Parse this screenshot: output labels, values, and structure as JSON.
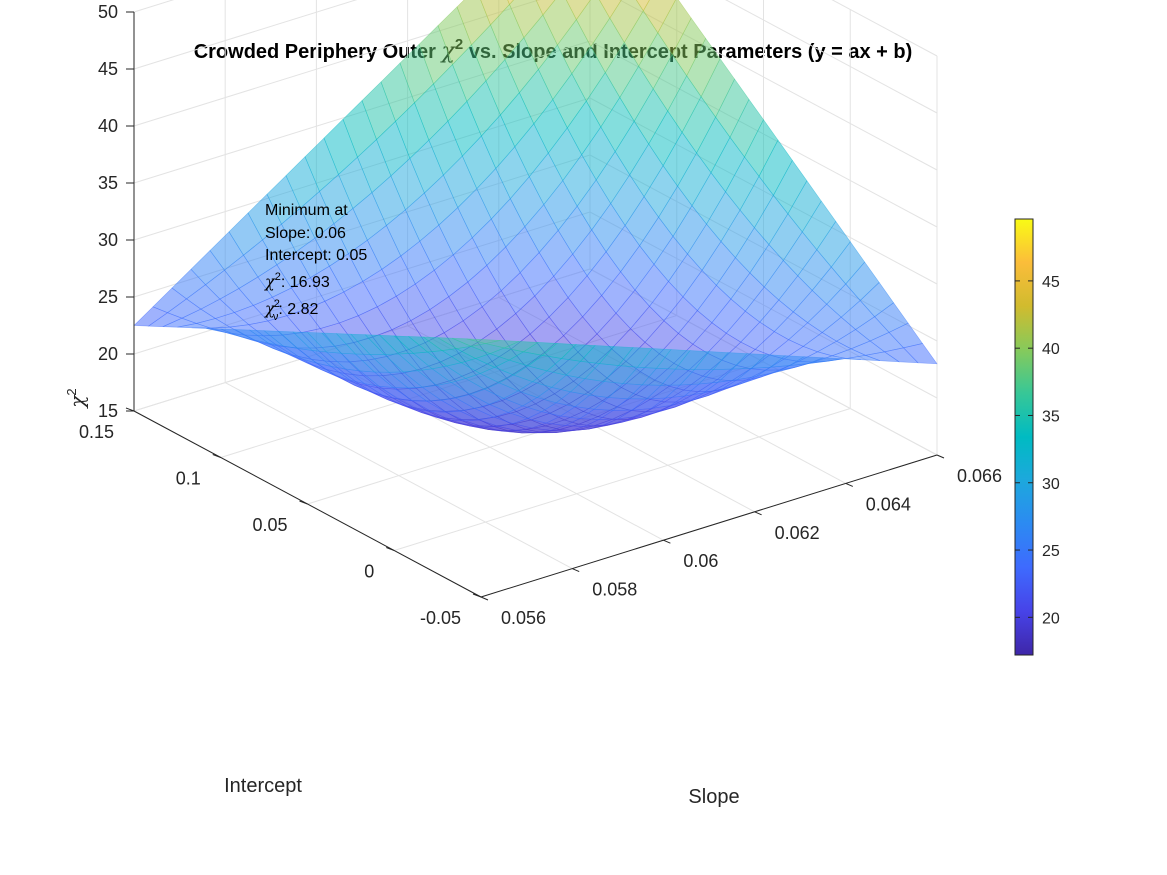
{
  "chart_data": {
    "type": "surface",
    "title": {
      "prefix": "Crowded Periphery Outer ",
      "chi": "χ",
      "sup": "2",
      "suffix": " vs. Slope and Intercept Parameters (y = ax + b)"
    },
    "xlabel": "Slope",
    "ylabel": "Intercept",
    "zlabel": {
      "chi": "χ",
      "sup": "2"
    },
    "x_range": [
      0.056,
      0.066
    ],
    "y_range": [
      -0.05,
      0.15
    ],
    "z_range": [
      15,
      50
    ],
    "x_ticks": [
      "0.056",
      "0.058",
      "0.06",
      "0.062",
      "0.064",
      "0.066"
    ],
    "y_ticks": [
      "-0.05",
      "0",
      "0.05",
      "0.1",
      "0.15"
    ],
    "z_ticks": [
      "15",
      "20",
      "25",
      "30",
      "35",
      "40",
      "45",
      "50"
    ],
    "surface": {
      "description_free": true,
      "corners": [
        {
          "x": 0.056,
          "y": -0.05,
          "z": 37.6
        },
        {
          "x": 0.066,
          "y": -0.05,
          "z": 23.0
        },
        {
          "x": 0.066,
          "y": 0.15,
          "z": 49.5
        },
        {
          "x": 0.056,
          "y": 0.15,
          "z": 22.5
        }
      ],
      "minimum": {
        "x": 0.06,
        "y": 0.05,
        "z": 16.93
      }
    },
    "colorbar": {
      "ticks": [
        "20",
        "25",
        "30",
        "35",
        "40",
        "45"
      ],
      "min": 17.2,
      "max": 49.6,
      "colormap": "parula"
    },
    "annotation": {
      "line1": "Minimum at",
      "line2": "Slope: 0.06",
      "line3": "Intercept: 0.05",
      "chi_symbol": "χ",
      "sup": "2",
      "chi2_value": ": 16.93",
      "chinu_sub": "ν",
      "chinu_value": ": 2.82"
    },
    "grid": true,
    "surface_alpha": 0.5
  }
}
